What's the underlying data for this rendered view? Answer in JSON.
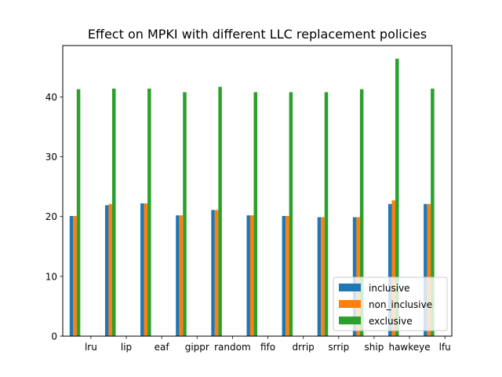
{
  "chart_data": {
    "type": "bar",
    "title": "Effect on MPKI with different LLC replacement policies",
    "xlabel": "",
    "ylabel": "",
    "categories": [
      "lru",
      "lip",
      "eaf",
      "gippr",
      "random",
      "fifo",
      "drrip",
      "srrip",
      "ship",
      "hawkeye",
      "lfu"
    ],
    "series": [
      {
        "name": "inclusive",
        "color": "#1f77b4",
        "values": [
          20.1,
          21.9,
          22.2,
          20.2,
          21.1,
          20.2,
          20.1,
          19.9,
          19.9,
          22.1,
          22.1
        ]
      },
      {
        "name": "non_inclusive",
        "color": "#ff7f0e",
        "values": [
          20.1,
          22.1,
          22.2,
          20.2,
          21.1,
          20.2,
          20.1,
          19.9,
          19.9,
          22.7,
          22.1
        ]
      },
      {
        "name": "exclusive",
        "color": "#2ca02c",
        "values": [
          41.3,
          41.4,
          41.4,
          40.8,
          41.7,
          40.8,
          40.8,
          40.8,
          41.3,
          46.4,
          41.4
        ]
      }
    ],
    "ylim": [
      0,
      48.6
    ],
    "yticks": [
      0,
      10,
      20,
      30,
      40
    ],
    "grid": false,
    "legend": "lower-right"
  }
}
